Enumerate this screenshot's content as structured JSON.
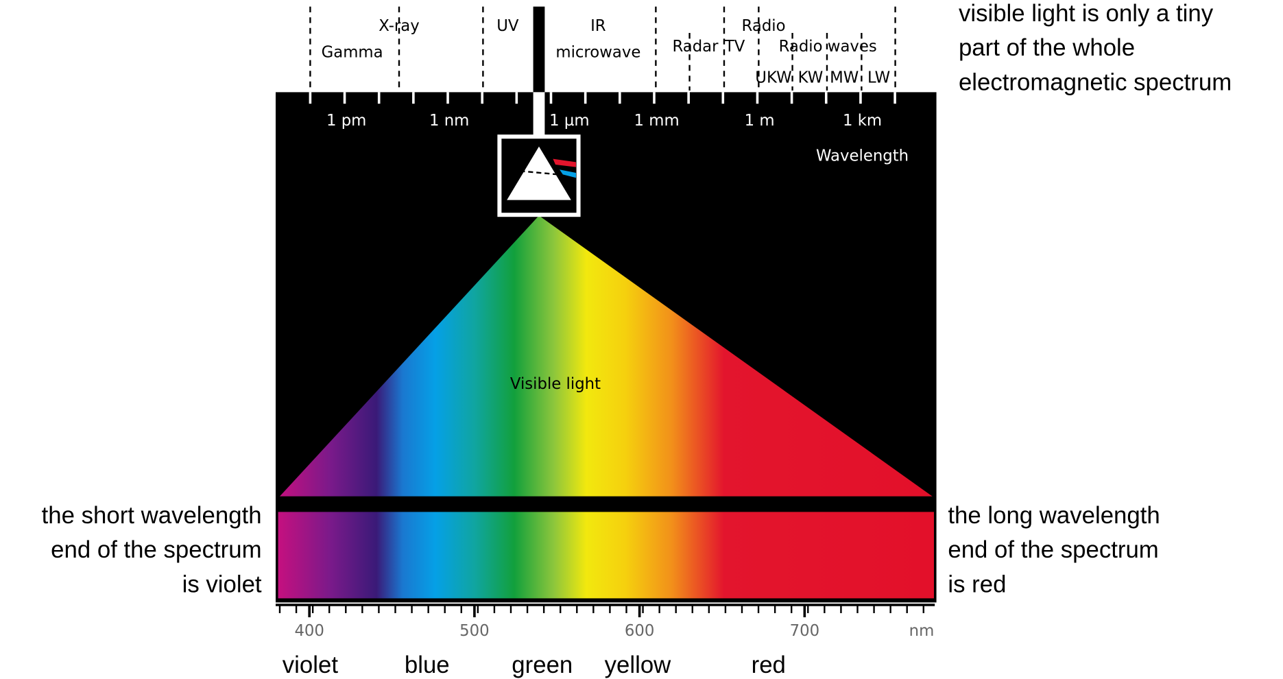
{
  "bands": [
    "Gamma",
    "X-ray",
    "UV",
    "IR",
    "microwave",
    "Radar",
    "TV",
    "Radio",
    "Radio waves",
    "UKW",
    "KW",
    "MW",
    "LW"
  ],
  "scale_ticks": [
    "1 pm",
    "1 nm",
    "1 µm",
    "1 mm",
    "1 m",
    "1 km"
  ],
  "scale_title": "Wavelength",
  "visible_label": "Visible light",
  "nm_ticks": [
    400,
    500,
    600,
    700
  ],
  "nm_unit": "nm",
  "color_names": [
    "violet",
    "blue",
    "green",
    "yellow",
    "red"
  ],
  "notes": {
    "top": [
      "visible light is only a tiny",
      "part of the whole",
      "electromagnetic spectrum"
    ],
    "left": [
      "the short wavelength",
      "end of the spectrum",
      "is violet"
    ],
    "right": [
      "the long wavelength",
      "end of the spectrum",
      "is red"
    ]
  }
}
